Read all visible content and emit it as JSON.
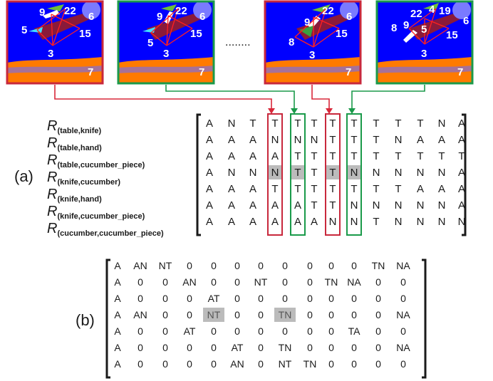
{
  "dots": "........",
  "frames": [
    {
      "border": "red",
      "labels": {
        "n9": "9",
        "n22": "22",
        "n6": "6",
        "n5": "5",
        "n15": "15",
        "n3": "3",
        "n7": "7"
      }
    },
    {
      "border": "green",
      "labels": {
        "n9": "9",
        "n22": "22",
        "n6": "6",
        "n5": "5",
        "n15": "15",
        "n3": "3",
        "n7": "7"
      }
    },
    {
      "border": "red",
      "labels": {
        "n9": "9",
        "n22": "22",
        "n6": "6",
        "n8": "8",
        "n15": "15",
        "n3": "3",
        "n7": "7"
      }
    },
    {
      "border": "green",
      "labels": {
        "n22": "22",
        "n4": "4",
        "n19": "19",
        "n6": "6",
        "n8": "8",
        "n9": "9",
        "n5": "5",
        "n15": "15",
        "n3": "3",
        "n7": "7"
      }
    }
  ],
  "colors": {
    "red": "#c8283c",
    "green": "#1a9a4a",
    "blue": "#0000ff",
    "orange": "#ff7a00",
    "highlight": "#bbbbbb"
  },
  "section_a": {
    "label": "(a)",
    "relations": [
      {
        "r": "R",
        "sub": "(table,knife)"
      },
      {
        "r": "R",
        "sub": "(table,hand)"
      },
      {
        "r": "R",
        "sub": "(table,cucumber_piece)"
      },
      {
        "r": "R",
        "sub": "(knife,cucumber)"
      },
      {
        "r": "R",
        "sub": "(knife,hand)"
      },
      {
        "r": "R",
        "sub": "(knife,cucumber_piece)"
      },
      {
        "r": "R",
        "sub": "(cucumber,cucumber_piece)"
      }
    ],
    "matrix": [
      [
        "A",
        "N",
        "T",
        "T",
        "T",
        "T",
        "T",
        "T",
        "T",
        "T",
        "T",
        "N",
        "A"
      ],
      [
        "A",
        "A",
        "A",
        "N",
        "N",
        "N",
        "T",
        "T",
        "T",
        "N",
        "A",
        "A",
        "A"
      ],
      [
        "A",
        "A",
        "A",
        "A",
        "T",
        "T",
        "T",
        "T",
        "T",
        "T",
        "T",
        "T",
        "T"
      ],
      [
        "A",
        "N",
        "N",
        "N",
        "T",
        "T",
        "T",
        "N",
        "N",
        "N",
        "N",
        "N",
        "A"
      ],
      [
        "A",
        "A",
        "A",
        "T",
        "T",
        "T",
        "T",
        "T",
        "T",
        "T",
        "A",
        "A",
        "A"
      ],
      [
        "A",
        "A",
        "A",
        "A",
        "A",
        "T",
        "T",
        "N",
        "N",
        "N",
        "N",
        "N",
        "A"
      ],
      [
        "A",
        "A",
        "A",
        "A",
        "A",
        "A",
        "N",
        "N",
        "T",
        "N",
        "N",
        "N",
        "N"
      ]
    ],
    "highlight_row": 3,
    "highlight_cols": [
      3,
      4,
      6,
      7
    ],
    "box_cols": [
      {
        "col": 3,
        "color": "red"
      },
      {
        "col": 4,
        "color": "green"
      },
      {
        "col": 6,
        "color": "red"
      },
      {
        "col": 7,
        "color": "green"
      }
    ]
  },
  "section_b": {
    "label": "(b)",
    "matrix": [
      [
        "A",
        "AN",
        "NT",
        "0",
        "0",
        "0",
        "0",
        "0",
        "0",
        "0",
        "0",
        "TN",
        "NA"
      ],
      [
        "A",
        "0",
        "0",
        "AN",
        "0",
        "0",
        "NT",
        "0",
        "0",
        "TN",
        "NA",
        "0",
        "0"
      ],
      [
        "A",
        "0",
        "0",
        "0",
        "AT",
        "0",
        "0",
        "0",
        "0",
        "0",
        "0",
        "0",
        "0"
      ],
      [
        "A",
        "AN",
        "0",
        "0",
        "NT",
        "0",
        "0",
        "TN",
        "0",
        "0",
        "0",
        "0",
        "NA"
      ],
      [
        "A",
        "0",
        "0",
        "AT",
        "0",
        "0",
        "0",
        "0",
        "0",
        "0",
        "TA",
        "0",
        "0"
      ],
      [
        "A",
        "0",
        "0",
        "0",
        "0",
        "AT",
        "0",
        "TN",
        "0",
        "0",
        "0",
        "0",
        "NA"
      ],
      [
        "A",
        "0",
        "0",
        "0",
        "0",
        "AN",
        "0",
        "NT",
        "TN",
        "0",
        "0",
        "0",
        "0"
      ]
    ],
    "highlight_row": 3,
    "highlight_cols": [
      4,
      7
    ]
  }
}
